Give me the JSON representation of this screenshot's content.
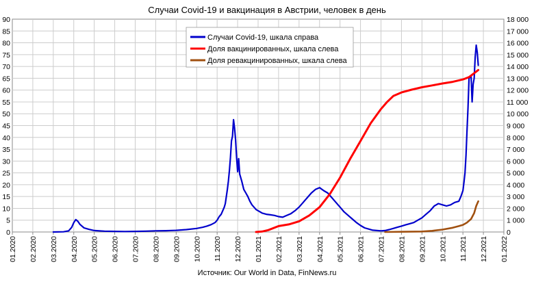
{
  "chart_data": {
    "type": "line",
    "title": "Случаи Covid-19 и вакцинация в Австрии, человек в день",
    "source": "Источник: Our World in Data, FinNews.ru",
    "x_ticks": [
      "01.2020",
      "02.2020",
      "03.2020",
      "04.2020",
      "05.2020",
      "06.2020",
      "07.2020",
      "08.2020",
      "09.2020",
      "10.2020",
      "11.2020",
      "12.2020",
      "01.2021",
      "02.2021",
      "03.2021",
      "04.2021",
      "05.2021",
      "06.2021",
      "07.2021",
      "08.2021",
      "09.2021",
      "10.2021",
      "11.2021",
      "12.2021",
      "01.2022"
    ],
    "left_axis": {
      "ticks": [
        "0",
        "5",
        "10",
        "15",
        "20",
        "25",
        "30",
        "35",
        "40",
        "45",
        "50",
        "55",
        "60",
        "65",
        "70",
        "75",
        "80",
        "85",
        "90"
      ],
      "ylim": [
        0,
        90
      ]
    },
    "right_axis": {
      "ticks": [
        "0",
        "1 000",
        "2 000",
        "3 000",
        "4 000",
        "5 000",
        "6 000",
        "7 000",
        "8 000",
        "9 000",
        "10 000",
        "11 000",
        "12 000",
        "13 000",
        "14 000",
        "15 000",
        "16 000",
        "17 000",
        "18 000"
      ],
      "ylim": [
        0,
        18000
      ]
    },
    "grid": true,
    "legend_position": "top-center",
    "series": [
      {
        "name": "Случаи Covid-19, шкала справа",
        "axis": "right",
        "color": "#0000cc",
        "points": [
          [
            2.0,
            0
          ],
          [
            2.5,
            20
          ],
          [
            2.75,
            100
          ],
          [
            2.9,
            400
          ],
          [
            3.0,
            800
          ],
          [
            3.1,
            1050
          ],
          [
            3.2,
            900
          ],
          [
            3.3,
            650
          ],
          [
            3.5,
            350
          ],
          [
            3.75,
            220
          ],
          [
            4.0,
            120
          ],
          [
            4.5,
            70
          ],
          [
            5.0,
            50
          ],
          [
            5.5,
            40
          ],
          [
            6.0,
            50
          ],
          [
            6.5,
            70
          ],
          [
            7.0,
            100
          ],
          [
            7.5,
            110
          ],
          [
            8.0,
            140
          ],
          [
            8.5,
            200
          ],
          [
            9.0,
            300
          ],
          [
            9.3,
            400
          ],
          [
            9.5,
            500
          ],
          [
            9.7,
            620
          ],
          [
            9.9,
            800
          ],
          [
            10.0,
            1000
          ],
          [
            10.1,
            1300
          ],
          [
            10.2,
            1500
          ],
          [
            10.3,
            1900
          ],
          [
            10.35,
            2100
          ],
          [
            10.4,
            2400
          ],
          [
            10.45,
            3000
          ],
          [
            10.5,
            3600
          ],
          [
            10.55,
            4300
          ],
          [
            10.6,
            5200
          ],
          [
            10.65,
            6300
          ],
          [
            10.7,
            7700
          ],
          [
            10.75,
            8100
          ],
          [
            10.8,
            9500
          ],
          [
            10.85,
            8800
          ],
          [
            10.9,
            7800
          ],
          [
            10.95,
            6300
          ],
          [
            11.0,
            5100
          ],
          [
            11.05,
            6200
          ],
          [
            11.1,
            4900
          ],
          [
            11.2,
            4300
          ],
          [
            11.3,
            3600
          ],
          [
            11.4,
            3300
          ],
          [
            11.5,
            3000
          ],
          [
            11.6,
            2600
          ],
          [
            11.7,
            2300
          ],
          [
            11.8,
            2100
          ],
          [
            11.9,
            1900
          ],
          [
            12.0,
            1800
          ],
          [
            12.2,
            1600
          ],
          [
            12.4,
            1500
          ],
          [
            12.6,
            1450
          ],
          [
            12.8,
            1400
          ],
          [
            13.0,
            1300
          ],
          [
            13.2,
            1250
          ],
          [
            13.4,
            1400
          ],
          [
            13.6,
            1550
          ],
          [
            13.8,
            1800
          ],
          [
            14.0,
            2100
          ],
          [
            14.2,
            2500
          ],
          [
            14.4,
            2900
          ],
          [
            14.6,
            3300
          ],
          [
            14.8,
            3600
          ],
          [
            15.0,
            3750
          ],
          [
            15.2,
            3500
          ],
          [
            15.4,
            3300
          ],
          [
            15.6,
            2900
          ],
          [
            15.8,
            2500
          ],
          [
            16.0,
            2100
          ],
          [
            16.2,
            1700
          ],
          [
            16.4,
            1400
          ],
          [
            16.6,
            1100
          ],
          [
            16.8,
            800
          ],
          [
            17.0,
            550
          ],
          [
            17.2,
            350
          ],
          [
            17.4,
            250
          ],
          [
            17.6,
            150
          ],
          [
            17.8,
            120
          ],
          [
            18.0,
            100
          ],
          [
            18.2,
            120
          ],
          [
            18.4,
            200
          ],
          [
            18.6,
            300
          ],
          [
            18.8,
            400
          ],
          [
            19.0,
            500
          ],
          [
            19.2,
            600
          ],
          [
            19.4,
            700
          ],
          [
            19.6,
            800
          ],
          [
            19.8,
            1000
          ],
          [
            20.0,
            1200
          ],
          [
            20.2,
            1500
          ],
          [
            20.4,
            1800
          ],
          [
            20.6,
            2200
          ],
          [
            20.8,
            2400
          ],
          [
            21.0,
            2300
          ],
          [
            21.2,
            2200
          ],
          [
            21.4,
            2300
          ],
          [
            21.6,
            2500
          ],
          [
            21.8,
            2600
          ],
          [
            21.9,
            3000
          ],
          [
            22.0,
            3500
          ],
          [
            22.05,
            4200
          ],
          [
            22.1,
            5000
          ],
          [
            22.15,
            6500
          ],
          [
            22.2,
            8500
          ],
          [
            22.25,
            10500
          ],
          [
            22.3,
            13000
          ],
          [
            22.4,
            13200
          ],
          [
            22.45,
            11000
          ],
          [
            22.5,
            12500
          ],
          [
            22.55,
            13000
          ],
          [
            22.6,
            14800
          ],
          [
            22.65,
            15800
          ],
          [
            22.7,
            15200
          ],
          [
            22.75,
            14100
          ]
        ]
      },
      {
        "name": "Доля вакцинированных, шкала слева",
        "axis": "left",
        "color": "#ff0000",
        "points": [
          [
            11.9,
            0
          ],
          [
            12.2,
            0.2
          ],
          [
            12.5,
            0.8
          ],
          [
            13.0,
            2.5
          ],
          [
            13.5,
            3.2
          ],
          [
            14.0,
            4.5
          ],
          [
            14.5,
            7.0
          ],
          [
            15.0,
            10.5
          ],
          [
            15.5,
            16.0
          ],
          [
            16.0,
            23.0
          ],
          [
            16.5,
            31.0
          ],
          [
            17.0,
            38.5
          ],
          [
            17.5,
            46.0
          ],
          [
            18.0,
            52.0
          ],
          [
            18.3,
            55.0
          ],
          [
            18.6,
            57.5
          ],
          [
            19.0,
            59.0
          ],
          [
            19.5,
            60.2
          ],
          [
            20.0,
            61.2
          ],
          [
            20.5,
            62.0
          ],
          [
            21.0,
            62.8
          ],
          [
            21.5,
            63.5
          ],
          [
            22.0,
            64.5
          ],
          [
            22.3,
            65.5
          ],
          [
            22.6,
            67.5
          ],
          [
            22.75,
            68.5
          ]
        ]
      },
      {
        "name": "Доля ревакцинированных, шкала слева",
        "axis": "left",
        "color": "#a05010",
        "points": [
          [
            18.2,
            0
          ],
          [
            19.0,
            0.1
          ],
          [
            20.0,
            0.2
          ],
          [
            20.5,
            0.5
          ],
          [
            21.0,
            1.0
          ],
          [
            21.5,
            1.8
          ],
          [
            21.8,
            2.5
          ],
          [
            22.0,
            3.0
          ],
          [
            22.2,
            4.0
          ],
          [
            22.4,
            5.5
          ],
          [
            22.55,
            8.0
          ],
          [
            22.65,
            11.0
          ],
          [
            22.75,
            13.0
          ]
        ]
      }
    ]
  }
}
